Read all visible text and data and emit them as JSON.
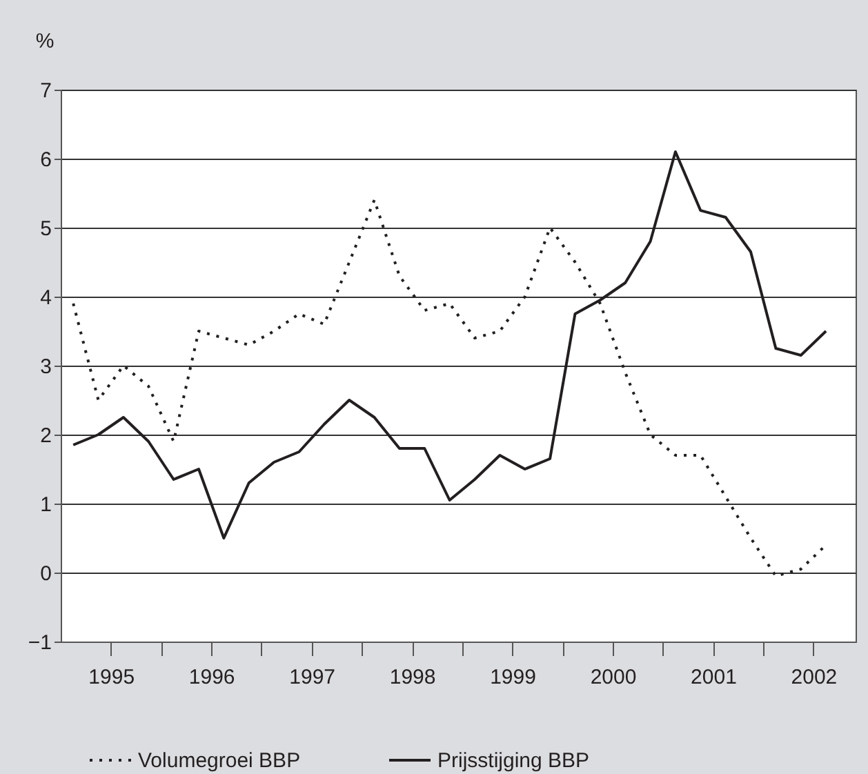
{
  "chart_data": {
    "type": "line",
    "ylabel": "%",
    "x": [
      1995.125,
      1995.375,
      1995.625,
      1995.875,
      1996.125,
      1996.375,
      1996.625,
      1996.875,
      1997.125,
      1997.375,
      1997.625,
      1997.875,
      1998.125,
      1998.375,
      1998.625,
      1998.875,
      1999.125,
      1999.375,
      1999.625,
      1999.875,
      2000.125,
      2000.375,
      2000.625,
      2000.875,
      2001.125,
      2001.375,
      2001.625,
      2001.875,
      2002.125,
      2002.375,
      2002.625
    ],
    "series": [
      {
        "name": "Volumegroei BBP",
        "color": "#231f20",
        "line_style": "dotted",
        "values": [
          3.9,
          2.5,
          3.0,
          2.7,
          1.9,
          3.5,
          3.4,
          3.3,
          3.5,
          3.75,
          3.6,
          4.5,
          5.4,
          4.3,
          3.8,
          3.9,
          3.4,
          3.5,
          4.0,
          5.0,
          4.5,
          3.9,
          2.9,
          2.0,
          1.7,
          1.7,
          1.1,
          0.5,
          -0.05,
          0.05,
          0.4
        ]
      },
      {
        "name": "Prijsstijging BBP",
        "color": "#231f20",
        "line_style": "solid",
        "values": [
          1.85,
          2.0,
          2.25,
          1.9,
          1.35,
          1.5,
          0.5,
          1.3,
          1.6,
          1.75,
          2.15,
          2.5,
          2.25,
          1.8,
          1.8,
          1.05,
          1.35,
          1.7,
          1.5,
          1.65,
          3.75,
          3.95,
          4.2,
          4.8,
          6.1,
          5.25,
          5.15,
          4.65,
          3.25,
          3.15,
          3.5
        ]
      }
    ],
    "xlim": [
      1995,
      2002.92
    ],
    "xticks": [
      {
        "value": 1995.5,
        "label": "1995"
      },
      {
        "value": 1996,
        "label": null
      },
      {
        "value": 1996.5,
        "label": "1996"
      },
      {
        "value": 1997,
        "label": null
      },
      {
        "value": 1997.5,
        "label": "1997"
      },
      {
        "value": 1998,
        "label": null
      },
      {
        "value": 1998.5,
        "label": "1998"
      },
      {
        "value": 1999,
        "label": null
      },
      {
        "value": 1999.5,
        "label": "1999"
      },
      {
        "value": 2000,
        "label": null
      },
      {
        "value": 2000.5,
        "label": "2000"
      },
      {
        "value": 2001,
        "label": null
      },
      {
        "value": 2001.5,
        "label": "2001"
      },
      {
        "value": 2002,
        "label": null
      },
      {
        "value": 2002.5,
        "label": "2002"
      }
    ],
    "ylim": [
      -1,
      7
    ],
    "yticks": [
      -1,
      0,
      1,
      2,
      3,
      4,
      5,
      6,
      7
    ],
    "grid": "y",
    "legend": "bottom",
    "marker": "none"
  }
}
